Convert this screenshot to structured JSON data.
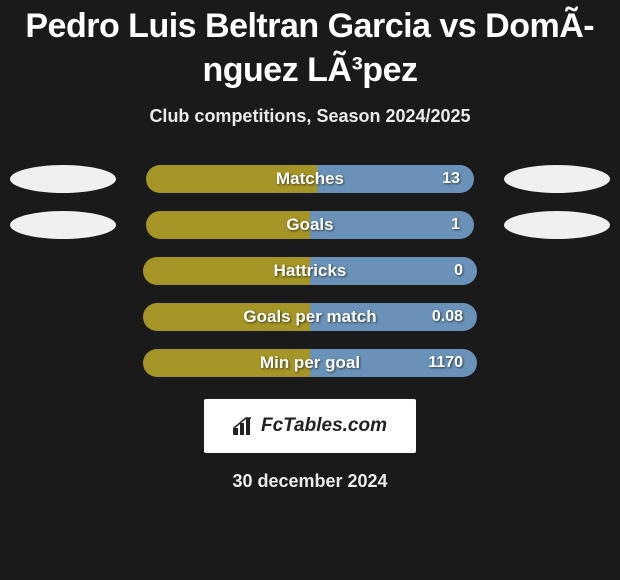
{
  "header": {
    "title": "Pedro Luis Beltran Garcia vs DomÃ­nguez LÃ³pez",
    "subtitle": "Club competitions, Season 2024/2025"
  },
  "colors": {
    "left_fill": "#a59426",
    "right_fill": "#6a92b9",
    "ellipse": "#f0f0f0",
    "background": "#1a1a1a",
    "brand_bg": "#ffffff",
    "brand_text": "#222222"
  },
  "stats": [
    {
      "label": "Matches",
      "value": "13",
      "left_ellipse": true,
      "right_ellipse": true,
      "left_pct": 52,
      "right_pct": 48
    },
    {
      "label": "Goals",
      "value": "1",
      "left_ellipse": true,
      "right_ellipse": true,
      "left_pct": 50,
      "right_pct": 50
    },
    {
      "label": "Hattricks",
      "value": "0",
      "left_ellipse": false,
      "right_ellipse": false,
      "left_pct": 50,
      "right_pct": 50
    },
    {
      "label": "Goals per match",
      "value": "0.08",
      "left_ellipse": false,
      "right_ellipse": false,
      "left_pct": 50,
      "right_pct": 50
    },
    {
      "label": "Min per goal",
      "value": "1170",
      "left_ellipse": false,
      "right_ellipse": false,
      "left_pct": 50,
      "right_pct": 50
    }
  ],
  "brand": {
    "label": "FcTables.com"
  },
  "footer": {
    "date": "30 december 2024"
  }
}
